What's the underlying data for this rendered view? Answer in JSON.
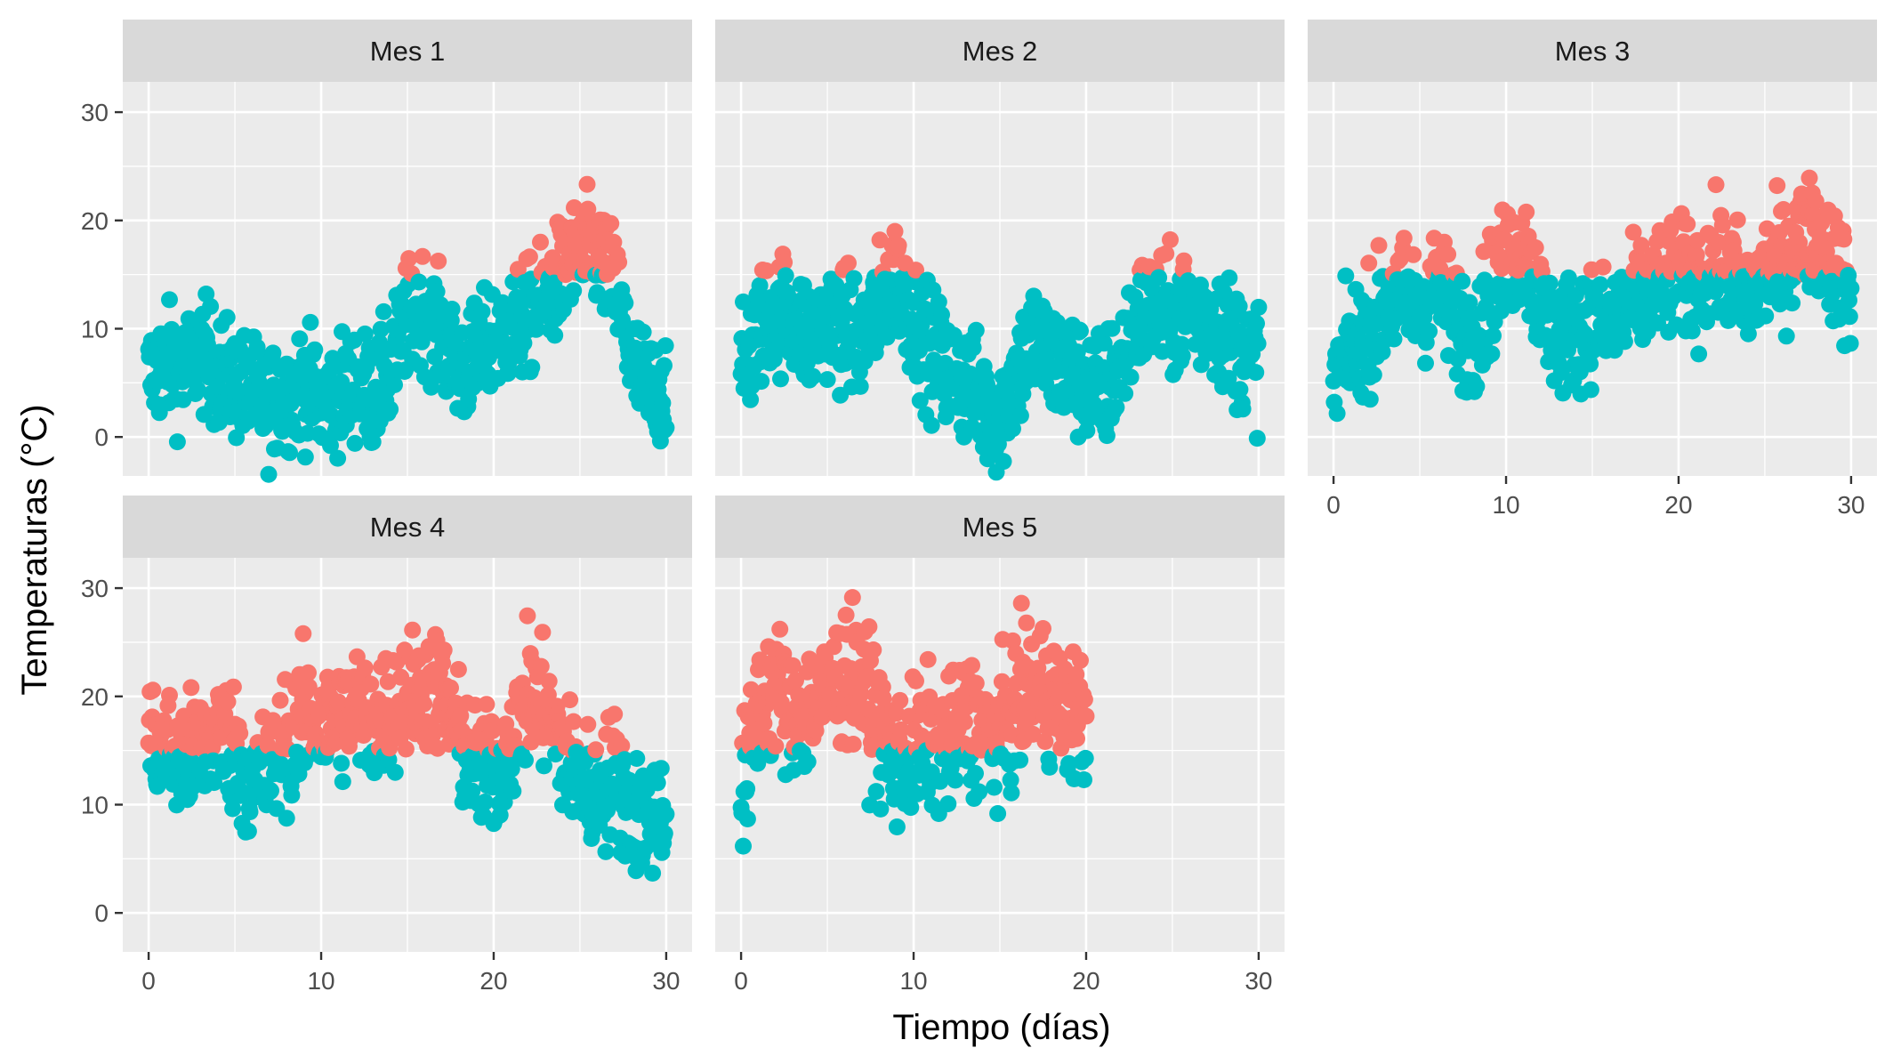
{
  "chart_data": {
    "type": "scatter",
    "xlabel": "Tiempo (días)",
    "ylabel": "Temperaturas (°C)",
    "xlim": [
      -1.5,
      31.5
    ],
    "ylim": [
      -3.6,
      32.8
    ],
    "x_ticks": [
      0,
      10,
      20,
      30
    ],
    "y_ticks": [
      0,
      10,
      20,
      30
    ],
    "threshold": 15,
    "grid": true,
    "legend": "none",
    "colors": {
      "above": "#F8766D",
      "below": "#00BFC4",
      "panel_bg": "#EBEBEB",
      "strip_bg": "#D9D9D9",
      "grid": "#FFFFFF"
    },
    "panels": [
      {
        "label": "Mes 1",
        "days": 30,
        "profile": [
          [
            0,
            5.5
          ],
          [
            1,
            7
          ],
          [
            2,
            6
          ],
          [
            3,
            8
          ],
          [
            4,
            6
          ],
          [
            5,
            5
          ],
          [
            6,
            4
          ],
          [
            7,
            3
          ],
          [
            8,
            4
          ],
          [
            9,
            5
          ],
          [
            10,
            3
          ],
          [
            11,
            4
          ],
          [
            12,
            5
          ],
          [
            13,
            4
          ],
          [
            14,
            6
          ],
          [
            15,
            11
          ],
          [
            16,
            12
          ],
          [
            17,
            9
          ],
          [
            18,
            6
          ],
          [
            19,
            7
          ],
          [
            20,
            9
          ],
          [
            21,
            10
          ],
          [
            22,
            11
          ],
          [
            23,
            13
          ],
          [
            24,
            15
          ],
          [
            25,
            17
          ],
          [
            26,
            17
          ],
          [
            27,
            14
          ],
          [
            28,
            7
          ],
          [
            29,
            4
          ],
          [
            30,
            5
          ]
        ],
        "spread": 3.2
      },
      {
        "label": "Mes 2",
        "days": 30,
        "profile": [
          [
            0,
            5
          ],
          [
            1,
            10
          ],
          [
            2,
            12
          ],
          [
            3,
            11
          ],
          [
            4,
            9
          ],
          [
            5,
            11
          ],
          [
            6,
            10
          ],
          [
            7,
            9
          ],
          [
            8,
            12
          ],
          [
            9,
            15
          ],
          [
            10,
            11
          ],
          [
            11,
            8
          ],
          [
            12,
            6
          ],
          [
            13,
            5
          ],
          [
            14,
            3
          ],
          [
            15,
            2
          ],
          [
            16,
            6
          ],
          [
            17,
            9
          ],
          [
            18,
            7
          ],
          [
            19,
            6
          ],
          [
            20,
            5
          ],
          [
            21,
            4
          ],
          [
            22,
            7
          ],
          [
            23,
            11
          ],
          [
            24,
            12
          ],
          [
            25,
            11
          ],
          [
            26,
            12
          ],
          [
            27,
            11
          ],
          [
            28,
            10
          ],
          [
            29,
            8
          ],
          [
            30,
            7
          ]
        ],
        "spread": 3.4
      },
      {
        "label": "Mes 3",
        "days": 30,
        "profile": [
          [
            0,
            5
          ],
          [
            1,
            8
          ],
          [
            2,
            10
          ],
          [
            3,
            12
          ],
          [
            4,
            13
          ],
          [
            5,
            12
          ],
          [
            6,
            14
          ],
          [
            7,
            11
          ],
          [
            8,
            9
          ],
          [
            9,
            13
          ],
          [
            10,
            16
          ],
          [
            11,
            18
          ],
          [
            12,
            12
          ],
          [
            13,
            9
          ],
          [
            14,
            10
          ],
          [
            15,
            11
          ],
          [
            16,
            10
          ],
          [
            17,
            12
          ],
          [
            18,
            13
          ],
          [
            19,
            14
          ],
          [
            20,
            15
          ],
          [
            21,
            14
          ],
          [
            22,
            16
          ],
          [
            23,
            15
          ],
          [
            24,
            13
          ],
          [
            25,
            15
          ],
          [
            26,
            16
          ],
          [
            27,
            18
          ],
          [
            28,
            19
          ],
          [
            29,
            16
          ],
          [
            30,
            13
          ]
        ],
        "spread": 3.3
      },
      {
        "label": "Mes 4",
        "days": 30,
        "profile": [
          [
            0,
            16
          ],
          [
            1,
            15
          ],
          [
            2,
            14
          ],
          [
            3,
            15
          ],
          [
            4,
            17
          ],
          [
            5,
            15
          ],
          [
            6,
            12
          ],
          [
            7,
            13
          ],
          [
            8,
            16
          ],
          [
            9,
            18
          ],
          [
            10,
            17
          ],
          [
            11,
            18
          ],
          [
            12,
            19
          ],
          [
            13,
            17
          ],
          [
            14,
            19
          ],
          [
            15,
            20
          ],
          [
            16,
            21
          ],
          [
            17,
            20
          ],
          [
            18,
            16
          ],
          [
            19,
            13
          ],
          [
            20,
            13
          ],
          [
            21,
            16
          ],
          [
            22,
            20
          ],
          [
            23,
            19
          ],
          [
            24,
            15
          ],
          [
            25,
            12
          ],
          [
            26,
            11
          ],
          [
            27,
            13
          ],
          [
            28,
            9
          ],
          [
            29,
            9
          ],
          [
            30,
            10
          ]
        ],
        "spread": 3.6
      },
      {
        "label": "Mes 5",
        "days": 20,
        "profile": [
          [
            0,
            10
          ],
          [
            1,
            19
          ],
          [
            2,
            21
          ],
          [
            3,
            18
          ],
          [
            4,
            19
          ],
          [
            5,
            20
          ],
          [
            6,
            22
          ],
          [
            7,
            21
          ],
          [
            8,
            17
          ],
          [
            9,
            14
          ],
          [
            10,
            15
          ],
          [
            11,
            16
          ],
          [
            12,
            15
          ],
          [
            13,
            18
          ],
          [
            14,
            17
          ],
          [
            15,
            16
          ],
          [
            16,
            19
          ],
          [
            17,
            21
          ],
          [
            18,
            20
          ],
          [
            19,
            18
          ],
          [
            20,
            18
          ]
        ],
        "spread": 3.8
      }
    ]
  }
}
